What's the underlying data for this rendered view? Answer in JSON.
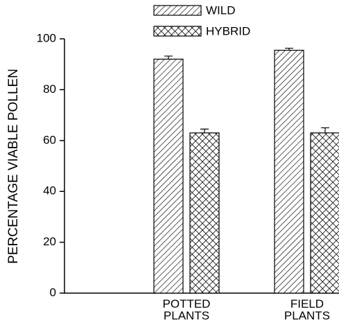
{
  "chart_data": {
    "type": "bar",
    "y_label": "PERCENTAGE VIABLE POLLEN",
    "categories": [
      "POTTED PLANTS",
      "FIELD PLANTS"
    ],
    "series": [
      {
        "name": "WILD",
        "color": "#000000",
        "hatch": "diagonal",
        "values": [
          92,
          95.5
        ],
        "errors": [
          1.2,
          0.8
        ]
      },
      {
        "name": "HYBRID",
        "color": "#000000",
        "hatch": "cross",
        "values": [
          63,
          63
        ],
        "errors": [
          1.5,
          2
        ]
      }
    ],
    "ylim": [
      0,
      100
    ],
    "yticks": [
      0,
      20,
      40,
      60,
      80,
      100
    ],
    "grid": false
  }
}
